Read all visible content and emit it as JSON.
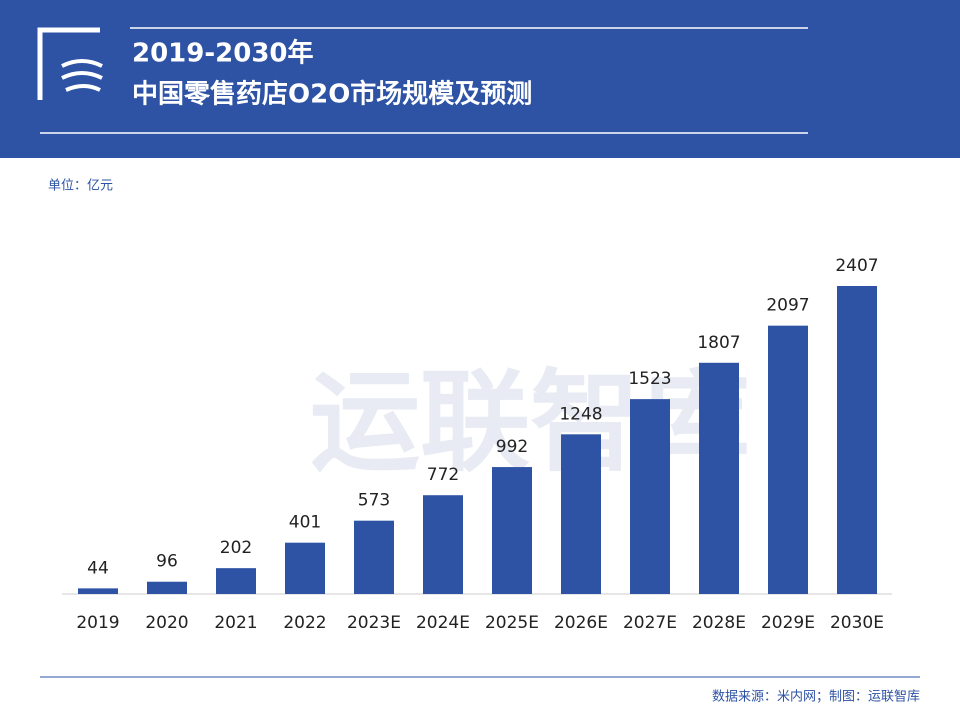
{
  "chart_data": {
    "type": "bar",
    "title_lines": [
      "2019-2030年",
      "中国零售药店O2O市场规模及预测"
    ],
    "unit": "单位：亿元",
    "watermark": "运联智库",
    "source": "数据来源：米内网；制图：运联智库",
    "categories": [
      "2019",
      "2020",
      "2021",
      "2022",
      "2023E",
      "2024E",
      "2025E",
      "2026E",
      "2027E",
      "2028E",
      "2029E",
      "2030E"
    ],
    "values": [
      44,
      96,
      202,
      401,
      573,
      772,
      992,
      1248,
      1523,
      1807,
      2097,
      2407
    ],
    "color": "#2e53a4"
  }
}
